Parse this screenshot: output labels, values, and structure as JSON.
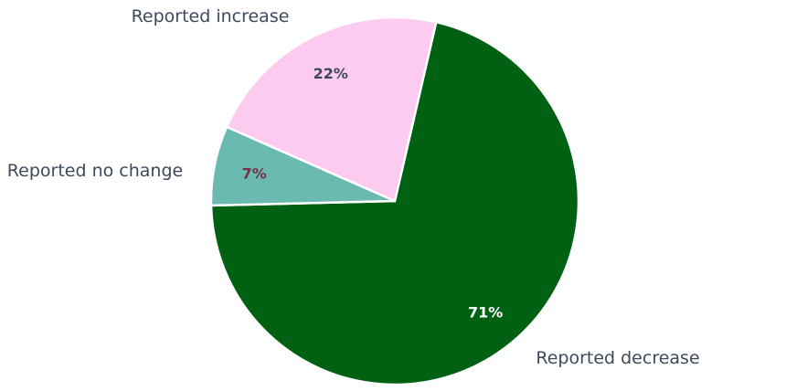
{
  "chart_data": {
    "type": "pie",
    "slices": [
      {
        "label": "Reported decrease",
        "value": 71,
        "display": "71%",
        "color": "#016113",
        "label_color": "#ffffff"
      },
      {
        "label": "Reported no change",
        "value": 7,
        "display": "7%",
        "color": "#6bbab1",
        "label_color": "#7a2e4a"
      },
      {
        "label": "Reported increase",
        "value": 22,
        "display": "22%",
        "color": "#fecbf0",
        "label_color": "#3d4a5c"
      }
    ]
  }
}
